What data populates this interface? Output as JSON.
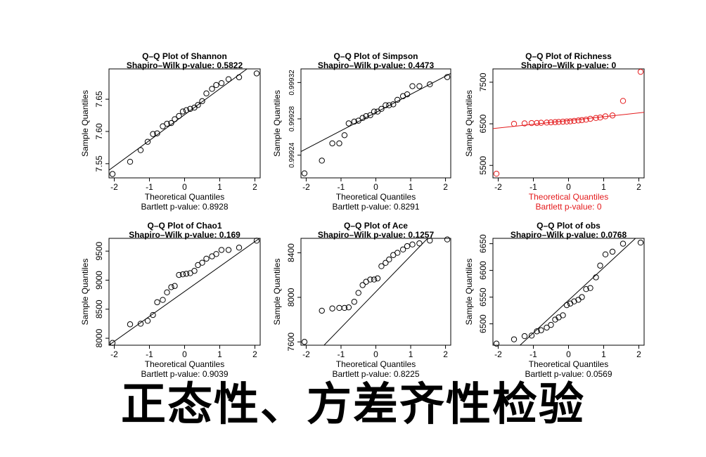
{
  "caption": "正态性、方差齐性检验",
  "chart_data": [
    {
      "type": "scatter",
      "title": "Q–Q Plot of Shannon",
      "subtitle": "Shapiro–Wilk p-value: 0.5822",
      "xlabel": "Theoretical Quantiles",
      "ylabel": "Sample Quantiles",
      "footer": "Bartlett p-value: 0.8928",
      "color": "#000000",
      "xlim": [
        -2.15,
        2.15
      ],
      "ylim": [
        7.528,
        7.697
      ],
      "xticks": [
        -2,
        -1,
        0,
        1,
        2
      ],
      "yticks": [
        7.55,
        7.6,
        7.65
      ],
      "ytick_labels": [
        "7.55",
        "7.60",
        "7.65"
      ],
      "line": [
        [
          -2.2,
          7.538
        ],
        [
          2.2,
          7.714
        ]
      ],
      "x": [
        -2.05,
        -1.55,
        -1.25,
        -1.05,
        -0.9,
        -0.78,
        -0.62,
        -0.5,
        -0.38,
        -0.28,
        -0.16,
        -0.05,
        0.05,
        0.16,
        0.28,
        0.38,
        0.5,
        0.62,
        0.78,
        0.9,
        1.05,
        1.25,
        1.55,
        2.05
      ],
      "y": [
        7.534,
        7.553,
        7.571,
        7.584,
        7.596,
        7.597,
        7.608,
        7.612,
        7.613,
        7.619,
        7.624,
        7.631,
        7.633,
        7.635,
        7.637,
        7.641,
        7.647,
        7.659,
        7.666,
        7.672,
        7.675,
        7.681,
        7.684,
        7.69
      ]
    },
    {
      "type": "scatter",
      "title": "Q–Q Plot of Simpson",
      "subtitle": "Shapiro–Wilk p-value: 0.4473",
      "xlabel": "Theoretical Quantiles",
      "ylabel": "Sample Quantiles",
      "footer": "Bartlett p-value: 0.8291",
      "color": "#000000",
      "xlim": [
        -2.15,
        2.15
      ],
      "ylim": [
        0.999215,
        0.999335
      ],
      "xticks": [
        -2,
        -1,
        0,
        1,
        2
      ],
      "yticks": [
        0.99924,
        0.99928,
        0.99932
      ],
      "ytick_labels": [
        "0.99924",
        "0.99928",
        "0.99932"
      ],
      "line": [
        [
          -2.2,
          0.999243
        ],
        [
          2.2,
          0.999331
        ]
      ],
      "x": [
        -2.05,
        -1.55,
        -1.25,
        -1.05,
        -0.9,
        -0.78,
        -0.62,
        -0.5,
        -0.38,
        -0.28,
        -0.16,
        -0.05,
        0.05,
        0.16,
        0.28,
        0.38,
        0.5,
        0.62,
        0.78,
        0.9,
        1.05,
        1.25,
        1.55,
        2.05
      ],
      "y": [
        0.99922,
        0.999234,
        0.999253,
        0.999253,
        0.999262,
        0.999275,
        0.999277,
        0.999278,
        0.999281,
        0.999283,
        0.999284,
        0.999288,
        0.999288,
        0.999291,
        0.999295,
        0.999295,
        0.999296,
        0.999301,
        0.999305,
        0.999307,
        0.999316,
        0.999316,
        0.999318,
        0.999326
      ]
    },
    {
      "type": "scatter",
      "title": "Q–Q Plot of Richness",
      "subtitle": "Shapiro–Wilk p-value: 0",
      "xlabel": "Theoretical Quantiles",
      "ylabel": "Sample Quantiles",
      "footer": "Bartlett p-value: 0",
      "color": "#e41a1c",
      "xlim": [
        -2.15,
        2.15
      ],
      "ylim": [
        5200,
        7820
      ],
      "xticks": [
        -2,
        -1,
        0,
        1,
        2
      ],
      "yticks": [
        5500,
        6500,
        7500
      ],
      "ytick_labels": [
        "5500",
        "6500",
        "7500"
      ],
      "line": [
        [
          -2.2,
          6380
        ],
        [
          2.2,
          6780
        ]
      ],
      "x": [
        -2.05,
        -1.55,
        -1.25,
        -1.05,
        -0.9,
        -0.78,
        -0.62,
        -0.5,
        -0.38,
        -0.28,
        -0.16,
        -0.05,
        0.05,
        0.16,
        0.28,
        0.38,
        0.5,
        0.62,
        0.78,
        0.9,
        1.05,
        1.25,
        1.55,
        2.05
      ],
      "y": [
        5300,
        6500,
        6510,
        6518,
        6520,
        6525,
        6530,
        6535,
        6540,
        6545,
        6550,
        6555,
        6560,
        6570,
        6580,
        6588,
        6600,
        6620,
        6640,
        6650,
        6680,
        6700,
        7050,
        7750
      ]
    },
    {
      "type": "scatter",
      "title": "Q–Q Plot of Chao1",
      "subtitle": "Shapiro–Wilk p-value: 0.169",
      "xlabel": "Theoretical Quantiles",
      "ylabel": "Sample Quantiles",
      "footer": "Bartlett p-value: 0.9039",
      "color": "#000000",
      "xlim": [
        -2.15,
        2.15
      ],
      "ylim": [
        7880,
        9720
      ],
      "xticks": [
        -2,
        -1,
        0,
        1,
        2
      ],
      "yticks": [
        8000,
        8500,
        9000,
        9500
      ],
      "ytick_labels": [
        "8000",
        "8500",
        "9000",
        "9500"
      ],
      "line": [
        [
          -2.2,
          7860
        ],
        [
          2.2,
          9750
        ]
      ],
      "x": [
        -2.05,
        -1.55,
        -1.25,
        -1.05,
        -0.9,
        -0.78,
        -0.62,
        -0.5,
        -0.38,
        -0.28,
        -0.16,
        -0.05,
        0.05,
        0.16,
        0.28,
        0.38,
        0.5,
        0.62,
        0.78,
        0.9,
        1.05,
        1.25,
        1.55,
        2.05
      ],
      "y": [
        7920,
        8240,
        8250,
        8300,
        8400,
        8620,
        8660,
        8790,
        8880,
        8900,
        9090,
        9100,
        9110,
        9120,
        9160,
        9260,
        9300,
        9370,
        9410,
        9450,
        9520,
        9520,
        9560,
        9680
      ]
    },
    {
      "type": "scatter",
      "title": "Q–Q Plot of Ace",
      "subtitle": "Shapiro–Wilk p-value: 0.1257",
      "xlabel": "Theoretical Quantiles",
      "ylabel": "Sample Quantiles",
      "footer": "Bartlett p-value: 0.8225",
      "color": "#000000",
      "xlim": [
        -2.15,
        2.15
      ],
      "ylim": [
        7570,
        8530
      ],
      "xticks": [
        -2,
        -1,
        0,
        1,
        2
      ],
      "yticks": [
        7600,
        8000,
        8400
      ],
      "ytick_labels": [
        "7600",
        "8000",
        "8400"
      ],
      "line": [
        [
          -2.2,
          7340
        ],
        [
          2.2,
          8760
        ]
      ],
      "x": [
        -2.05,
        -1.55,
        -1.25,
        -1.05,
        -0.9,
        -0.78,
        -0.62,
        -0.5,
        -0.38,
        -0.28,
        -0.16,
        -0.05,
        0.05,
        0.16,
        0.28,
        0.38,
        0.5,
        0.62,
        0.78,
        0.9,
        1.05,
        1.25,
        1.55,
        2.05
      ],
      "y": [
        7600,
        7880,
        7900,
        7905,
        7905,
        7910,
        7960,
        8040,
        8110,
        8140,
        8160,
        8160,
        8170,
        8280,
        8310,
        8340,
        8380,
        8400,
        8430,
        8460,
        8475,
        8485,
        8510,
        8520
      ]
    },
    {
      "type": "scatter",
      "title": "Q–Q Plot of obs",
      "subtitle": "Shapiro–Wilk p-value: 0.0768",
      "xlabel": "Theoretical Quantiles",
      "ylabel": "Sample Quantiles",
      "footer": "Bartlett p-value: 0.0569",
      "color": "#000000",
      "xlim": [
        -2.15,
        2.15
      ],
      "ylim": [
        6460,
        6660
      ],
      "xticks": [
        -2,
        -1,
        0,
        1,
        2
      ],
      "yticks": [
        6500,
        6550,
        6600,
        6650
      ],
      "ytick_labels": [
        "6500",
        "6550",
        "6600",
        "6650"
      ],
      "line": [
        [
          -2.2,
          6410
        ],
        [
          2.2,
          6678
        ]
      ],
      "x": [
        -2.05,
        -1.55,
        -1.25,
        -1.05,
        -0.9,
        -0.78,
        -0.62,
        -0.5,
        -0.38,
        -0.28,
        -0.16,
        -0.05,
        0.05,
        0.16,
        0.28,
        0.38,
        0.5,
        0.62,
        0.78,
        0.9,
        1.05,
        1.25,
        1.55,
        2.05
      ],
      "y": [
        6463,
        6471,
        6477,
        6478,
        6486,
        6488,
        6493,
        6498,
        6508,
        6512,
        6516,
        6535,
        6538,
        6542,
        6545,
        6550,
        6565,
        6567,
        6587,
        6609,
        6630,
        6635,
        6650,
        6652
      ]
    }
  ]
}
